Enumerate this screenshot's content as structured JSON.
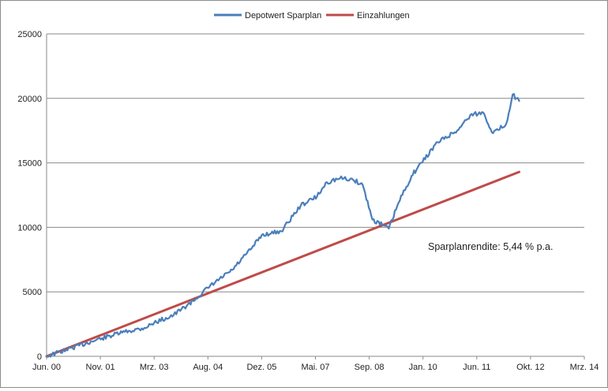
{
  "chart_data": {
    "type": "line",
    "title": "",
    "xlabel": "",
    "ylabel": "",
    "ylim": [
      0,
      25000
    ],
    "yticks": [
      0,
      5000,
      10000,
      15000,
      20000,
      25000
    ],
    "ytick_labels": [
      "0",
      "5000",
      "10000",
      "15000",
      "20000",
      "25000"
    ],
    "xlim": [
      "2000-06",
      "2014-03"
    ],
    "xtick_labels": [
      "Jun. 00",
      "Nov. 01",
      "Mrz. 03",
      "Aug. 04",
      "Dez. 05",
      "Mai. 07",
      "Sep. 08",
      "Jan. 10",
      "Jun. 11",
      "Okt. 12",
      "Mrz. 14"
    ],
    "grid": "horizontal",
    "legend_position": "top",
    "annotation": "Sparplanrendite: 5,44 % p.a.",
    "series": [
      {
        "name": "Depotwert Sparplan",
        "color": "#4a7ebb",
        "x": [
          "2000-06",
          "2000-12",
          "2001-06",
          "2001-11",
          "2002-06",
          "2002-12",
          "2003-03",
          "2003-09",
          "2004-03",
          "2004-08",
          "2005-03",
          "2005-09",
          "2005-12",
          "2006-06",
          "2006-12",
          "2007-05",
          "2007-08",
          "2007-12",
          "2008-04",
          "2008-07",
          "2008-10",
          "2009-01",
          "2009-03",
          "2009-06",
          "2009-10",
          "2010-01",
          "2010-06",
          "2010-12",
          "2011-04",
          "2011-08",
          "2011-11",
          "2012-03",
          "2012-05",
          "2012-07"
        ],
        "values": [
          0,
          500,
          1000,
          1400,
          1900,
          2200,
          2600,
          3200,
          4300,
          5400,
          6700,
          8400,
          9400,
          9700,
          11700,
          12400,
          13500,
          13800,
          13700,
          13300,
          10600,
          10200,
          9900,
          11900,
          14000,
          15000,
          16600,
          17500,
          18700,
          18900,
          17300,
          18000,
          20300,
          19800
        ]
      },
      {
        "name": "Einzahlungen",
        "color": "#be4b48",
        "x": [
          "2000-06",
          "2012-07"
        ],
        "values": [
          0,
          14300
        ]
      }
    ]
  }
}
